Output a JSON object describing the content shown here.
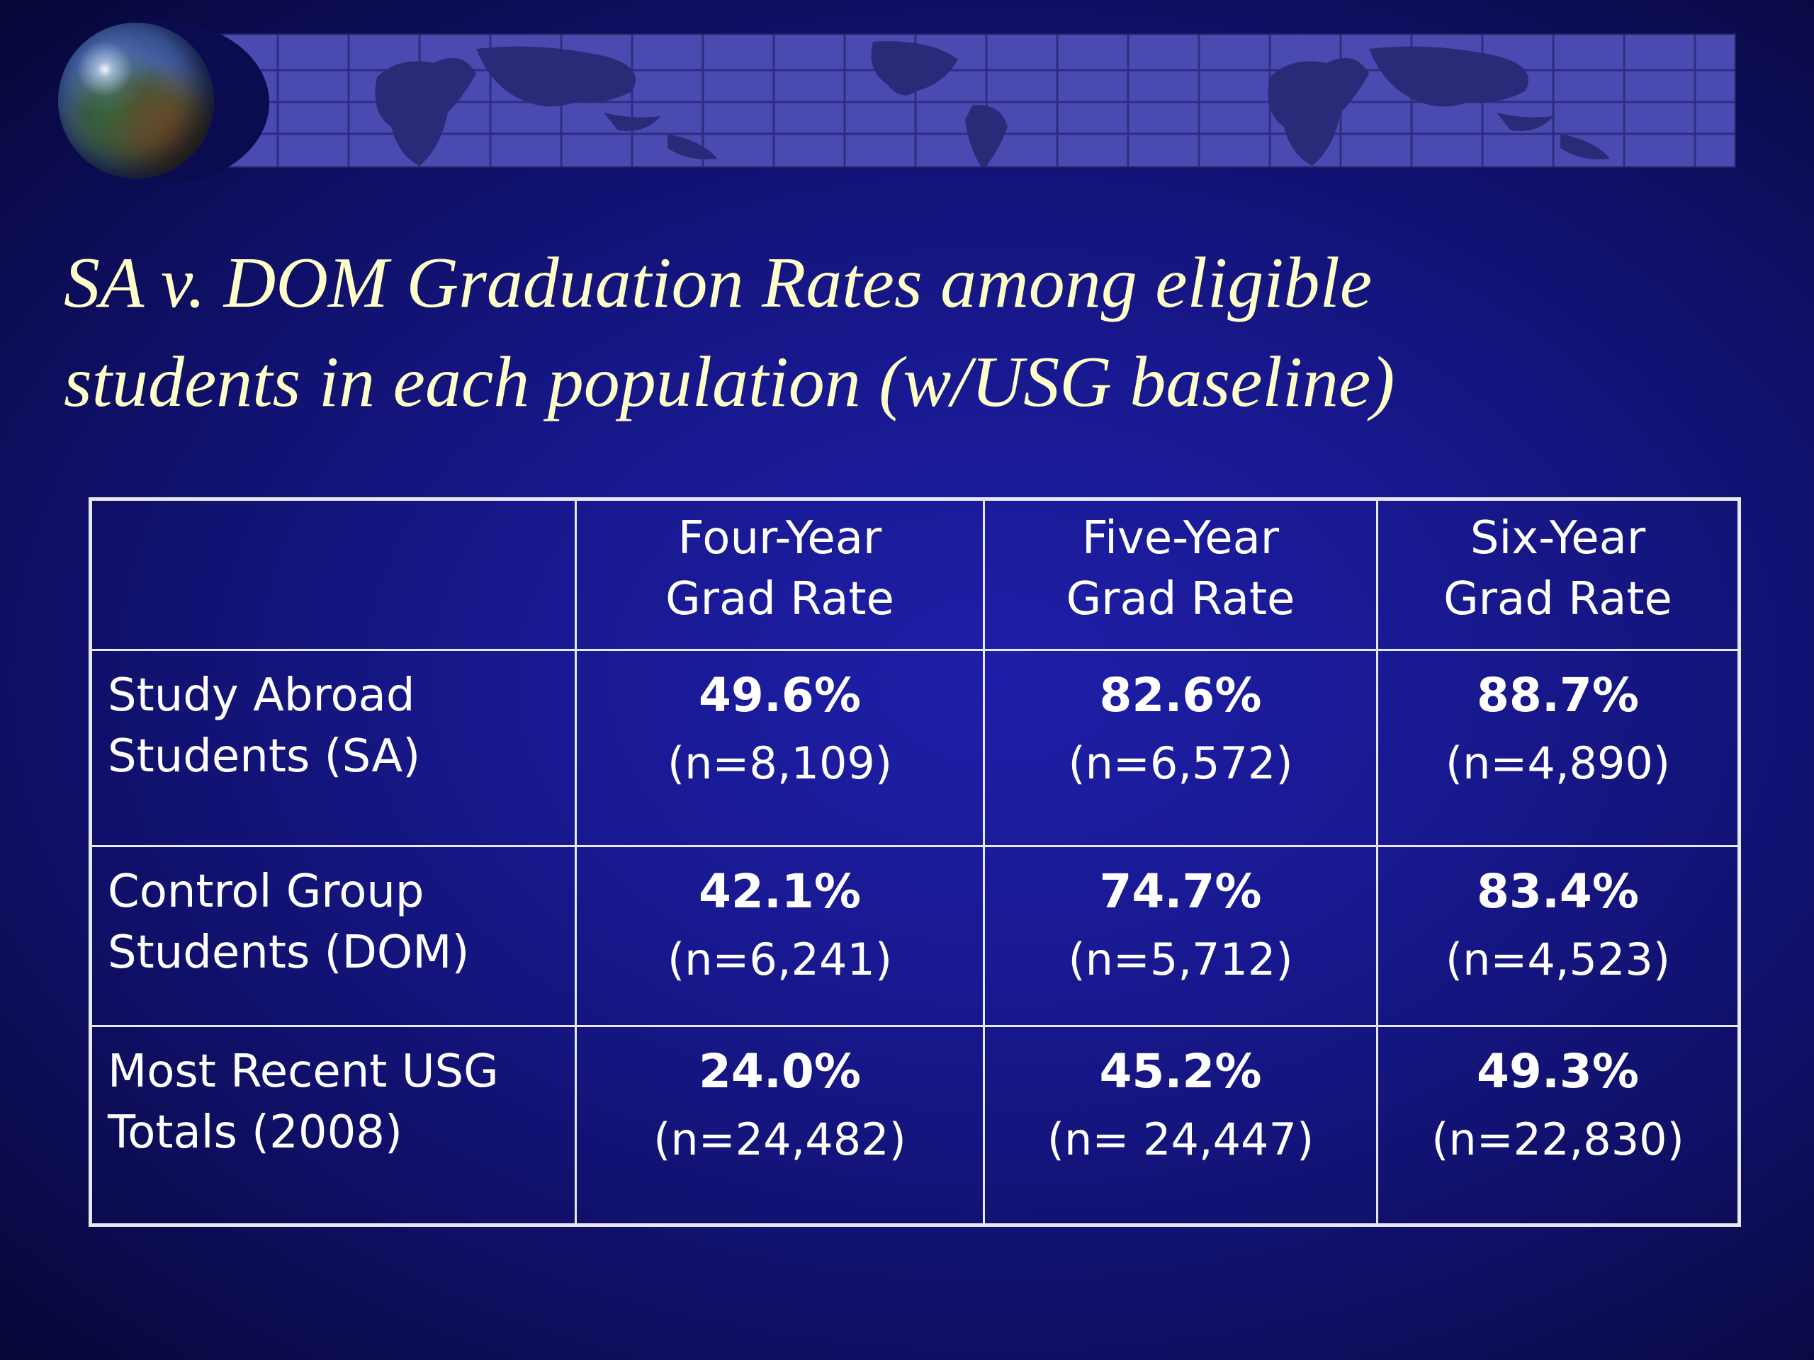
{
  "title": {
    "line1": "SA v. DOM Graduation Rates among eligible",
    "line2": "students in each population (w/USG baseline)"
  },
  "table": {
    "headers": [
      {
        "line1": "",
        "line2": ""
      },
      {
        "line1": "Four-Year",
        "line2": "Grad Rate"
      },
      {
        "line1": "Five-Year",
        "line2": "Grad Rate"
      },
      {
        "line1": "Six-Year",
        "line2": "Grad Rate"
      }
    ],
    "rows": [
      {
        "label_line1": "Study Abroad",
        "label_line2": "Students (SA)",
        "cells": [
          {
            "rate": "49.6%",
            "n": "(n=8,109)"
          },
          {
            "rate": "82.6%",
            "n": "(n=6,572)"
          },
          {
            "rate": "88.7%",
            "n": "(n=4,890)"
          }
        ]
      },
      {
        "label_line1": "Control Group",
        "label_line2": "Students (DOM)",
        "cells": [
          {
            "rate": "42.1%",
            "n": "(n=6,241)"
          },
          {
            "rate": "74.7%",
            "n": "(n=5,712)"
          },
          {
            "rate": "83.4%",
            "n": "(n=4,523)"
          }
        ]
      },
      {
        "label_line1": "Most Recent USG",
        "label_line2": "Totals (2008)",
        "cells": [
          {
            "rate": "24.0%",
            "n": "(n=24,482)"
          },
          {
            "rate": "45.2%",
            "n": "(n= 24,447)"
          },
          {
            "rate": "49.3%",
            "n": "(n=22,830)"
          }
        ]
      }
    ]
  },
  "colors": {
    "background": "#18188e",
    "title_text": "#ffffc8",
    "table_text": "#ffffff",
    "table_border": "#e8e8f0",
    "banner": "#4a4ab0"
  },
  "decorations": {
    "globe": "globe-icon",
    "banner": "world-map-banner"
  }
}
